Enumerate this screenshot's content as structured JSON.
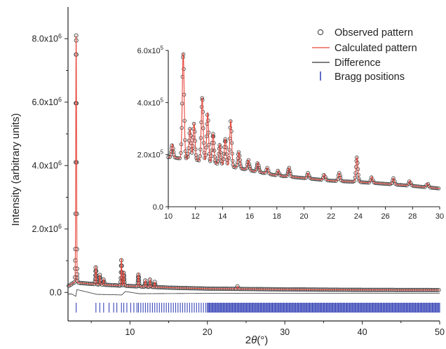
{
  "chart_data": [
    {
      "panel": "main",
      "type": "scatter",
      "xlabel": "2θ(°)",
      "ylabel": "Intensity (arbitrary units)",
      "xlim": [
        2,
        50
      ],
      "ylim": [
        -900000,
        9000000
      ],
      "xticks": [
        10,
        20,
        30,
        40,
        50
      ],
      "yticks": [
        0,
        2000000,
        4000000,
        6000000,
        8000000
      ],
      "ytick_labels": [
        {
          "base": "0.0",
          "exp": ""
        },
        {
          "base": "2.0x10",
          "exp": "6"
        },
        {
          "base": "4.0x10",
          "exp": "6"
        },
        {
          "base": "6.0x10",
          "exp": "6"
        },
        {
          "base": "8.0x10",
          "exp": "6"
        }
      ],
      "baseline": [
        [
          2.0,
          190000
        ],
        [
          2.8,
          320000
        ],
        [
          3.5,
          300000
        ],
        [
          6,
          250000
        ],
        [
          10,
          200000
        ],
        [
          15,
          150000
        ],
        [
          20,
          120000
        ],
        [
          30,
          95000
        ],
        [
          40,
          80000
        ],
        [
          50,
          75000
        ]
      ],
      "peaks": [
        {
          "x": 3.05,
          "y": 8100000
        },
        {
          "x": 5.6,
          "y": 830000
        },
        {
          "x": 6.1,
          "y": 550000
        },
        {
          "x": 6.6,
          "y": 420000
        },
        {
          "x": 8.9,
          "y": 1080000
        },
        {
          "x": 9.2,
          "y": 650000
        },
        {
          "x": 11.1,
          "y": 590000
        },
        {
          "x": 12.0,
          "y": 390000
        },
        {
          "x": 12.6,
          "y": 420000
        },
        {
          "x": 13.2,
          "y": 330000
        },
        {
          "x": 23.9,
          "y": 195000
        }
      ],
      "difference": [
        [
          2.5,
          -50000
        ],
        [
          3.0,
          -120000
        ],
        [
          3.15,
          90000
        ],
        [
          5.7,
          -60000
        ],
        [
          8.95,
          -80000
        ],
        [
          9.4,
          30000
        ],
        [
          11.2,
          -40000
        ],
        [
          20,
          -30000
        ],
        [
          50,
          -30000
        ]
      ],
      "bragg_ticks_y": -480000,
      "bragg_positions": [
        3.05,
        5.6,
        6.1,
        6.6,
        7.3,
        7.9,
        8.3,
        8.9,
        9.2,
        9.6,
        10.1,
        10.5,
        10.9,
        11.1,
        11.4,
        11.7,
        12.0,
        12.3,
        12.6,
        12.9,
        13.2,
        13.5,
        13.8,
        14.1,
        14.4,
        14.7,
        15.0,
        15.3,
        15.6,
        15.9,
        16.2,
        16.5,
        16.8,
        17.1,
        17.4,
        17.7,
        18.0,
        18.3,
        18.6,
        18.9,
        19.2,
        19.5,
        19.8
      ],
      "bragg_dense_from": 20,
      "bragg_dense_to": 50
    },
    {
      "panel": "inset",
      "type": "scatter",
      "xlim": [
        10,
        30
      ],
      "ylim": [
        0,
        600000
      ],
      "xticks": [
        10,
        12,
        14,
        16,
        18,
        20,
        22,
        24,
        26,
        28,
        30
      ],
      "yticks": [
        0,
        200000,
        400000,
        600000
      ],
      "ytick_labels": [
        {
          "base": "0.0",
          "exp": ""
        },
        {
          "base": "2.0x10",
          "exp": "5"
        },
        {
          "base": "4.0x10",
          "exp": "5"
        },
        {
          "base": "6.0x10",
          "exp": "5"
        }
      ],
      "baseline": [
        [
          10,
          190000
        ],
        [
          12,
          180000
        ],
        [
          14,
          160000
        ],
        [
          16,
          140000
        ],
        [
          18,
          120000
        ],
        [
          20,
          110000
        ],
        [
          22,
          100000
        ],
        [
          24,
          95000
        ],
        [
          26,
          88000
        ],
        [
          28,
          80000
        ],
        [
          30,
          70000
        ]
      ],
      "peaks": [
        {
          "x": 10.3,
          "y": 240000
        },
        {
          "x": 11.1,
          "y": 590000
        },
        {
          "x": 11.6,
          "y": 300000
        },
        {
          "x": 11.9,
          "y": 320000
        },
        {
          "x": 12.5,
          "y": 420000
        },
        {
          "x": 12.9,
          "y": 360000
        },
        {
          "x": 13.3,
          "y": 280000
        },
        {
          "x": 13.8,
          "y": 240000
        },
        {
          "x": 14.2,
          "y": 260000
        },
        {
          "x": 14.6,
          "y": 330000
        },
        {
          "x": 15.2,
          "y": 210000
        },
        {
          "x": 15.9,
          "y": 180000
        },
        {
          "x": 16.6,
          "y": 170000
        },
        {
          "x": 17.3,
          "y": 150000
        },
        {
          "x": 18.1,
          "y": 140000
        },
        {
          "x": 18.9,
          "y": 150000
        },
        {
          "x": 20.3,
          "y": 130000
        },
        {
          "x": 21.5,
          "y": 125000
        },
        {
          "x": 22.6,
          "y": 130000
        },
        {
          "x": 23.9,
          "y": 190000
        },
        {
          "x": 25.0,
          "y": 115000
        },
        {
          "x": 26.6,
          "y": 110000
        },
        {
          "x": 27.8,
          "y": 100000
        },
        {
          "x": 29.1,
          "y": 90000
        }
      ]
    }
  ],
  "legend": {
    "position": "top-right",
    "observed_label": "Observed pattern",
    "calculated_label": "Calculated pattern",
    "difference_label": "Difference",
    "bragg_label": "Bragg positions"
  },
  "colors": {
    "observed": "#444444",
    "calculated": "#e8473c",
    "difference": "#333333",
    "bragg": "#3a48b8",
    "axis": "#222222"
  },
  "icons": {
    "observed_marker": "open-circle-icon",
    "calculated_line": "red-line-icon",
    "difference_line": "black-line-icon",
    "bragg_marker": "vertical-bar-icon"
  }
}
